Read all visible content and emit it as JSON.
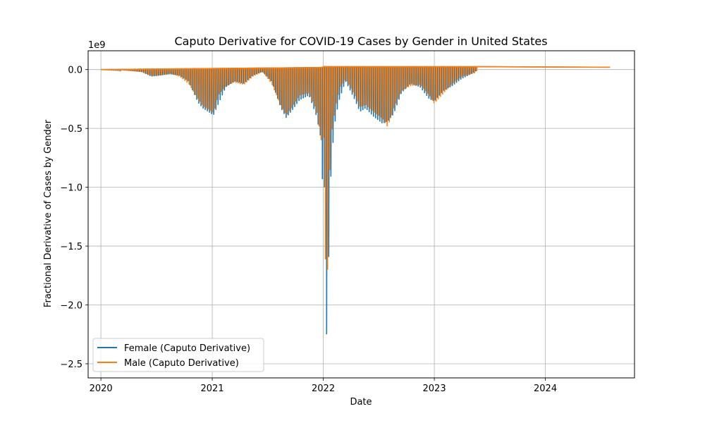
{
  "chart_data": {
    "type": "line",
    "title": "Caputo Derivative for COVID-19 Cases by Gender in United States",
    "xlabel": "Date",
    "ylabel": "Fractional Derivative of Cases by Gender",
    "y_offset_text": "1e9",
    "y_scale": 1000000000,
    "xlim": [
      "2019-11-20",
      "2024-10-20"
    ],
    "ylim": [
      -2.62,
      0.16
    ],
    "x_ticks": [
      "2020",
      "2021",
      "2022",
      "2023",
      "2024"
    ],
    "x_tick_dates": [
      "2020-01-01",
      "2021-01-01",
      "2022-01-01",
      "2023-01-01",
      "2024-01-01"
    ],
    "y_ticks": [
      0.0,
      -0.5,
      -1.0,
      -1.5,
      -2.0,
      -2.5
    ],
    "y_tick_labels": [
      "0.0",
      "−0.5",
      "−1.0",
      "−1.5",
      "−2.0",
      "−2.5"
    ],
    "grid": true,
    "legend_position": "lower-left",
    "series": [
      {
        "name": "Female (Caputo Derivative)",
        "color": "#1f77b4",
        "points": [
          [
            "2020-01-01",
            0.0
          ],
          [
            "2020-03-01",
            -0.003
          ],
          [
            "2020-04-15",
            -0.012
          ],
          [
            "2020-05-15",
            -0.022
          ],
          [
            "2020-06-15",
            -0.06
          ],
          [
            "2020-07-15",
            -0.05
          ],
          [
            "2020-08-15",
            -0.04
          ],
          [
            "2020-09-15",
            -0.05
          ],
          [
            "2020-10-15",
            -0.1
          ],
          [
            "2020-11-15",
            -0.28
          ],
          [
            "2020-12-01",
            -0.33
          ],
          [
            "2020-12-20",
            -0.36
          ],
          [
            "2021-01-05",
            -0.39
          ],
          [
            "2021-01-20",
            -0.3
          ],
          [
            "2021-02-15",
            -0.15
          ],
          [
            "2021-03-15",
            -0.1
          ],
          [
            "2021-04-15",
            -0.12
          ],
          [
            "2021-05-15",
            -0.05
          ],
          [
            "2021-06-15",
            -0.02
          ],
          [
            "2021-07-15",
            -0.1
          ],
          [
            "2021-08-15",
            -0.33
          ],
          [
            "2021-09-01",
            -0.41
          ],
          [
            "2021-09-20",
            -0.35
          ],
          [
            "2021-10-15",
            -0.26
          ],
          [
            "2021-11-15",
            -0.22
          ],
          [
            "2021-12-10",
            -0.4
          ],
          [
            "2021-12-25",
            -0.6
          ],
          [
            "2022-01-01",
            -1.18
          ],
          [
            "2022-01-05",
            -1.0
          ],
          [
            "2022-01-08",
            -2.51
          ],
          [
            "2022-01-12",
            -2.25
          ],
          [
            "2022-01-18",
            -1.7
          ],
          [
            "2022-01-25",
            -0.95
          ],
          [
            "2022-02-05",
            -0.5
          ],
          [
            "2022-02-20",
            -0.28
          ],
          [
            "2022-03-15",
            -0.1
          ],
          [
            "2022-04-15",
            -0.26
          ],
          [
            "2022-05-01",
            -0.36
          ],
          [
            "2022-05-20",
            -0.33
          ],
          [
            "2022-06-15",
            -0.4
          ],
          [
            "2022-07-15",
            -0.46
          ],
          [
            "2022-08-01",
            -0.44
          ],
          [
            "2022-08-20",
            -0.38
          ],
          [
            "2022-09-15",
            -0.2
          ],
          [
            "2022-10-15",
            -0.12
          ],
          [
            "2022-11-15",
            -0.15
          ],
          [
            "2022-12-15",
            -0.25
          ],
          [
            "2023-01-01",
            -0.27
          ],
          [
            "2023-02-01",
            -0.18
          ],
          [
            "2023-03-01",
            -0.14
          ],
          [
            "2023-04-01",
            -0.08
          ],
          [
            "2023-05-15",
            -0.02
          ],
          [
            "2023-06-01",
            0.025
          ],
          [
            "2024-08-01",
            0.02
          ]
        ]
      },
      {
        "name": "Male (Caputo Derivative)",
        "color": "#ff7f0e",
        "points": [
          [
            "2020-01-01",
            0.0
          ],
          [
            "2020-03-01",
            -0.003
          ],
          [
            "2020-04-15",
            -0.015
          ],
          [
            "2020-05-15",
            -0.02
          ],
          [
            "2020-06-15",
            -0.055
          ],
          [
            "2020-07-15",
            -0.05
          ],
          [
            "2020-08-15",
            -0.035
          ],
          [
            "2020-09-15",
            -0.06
          ],
          [
            "2020-10-15",
            -0.12
          ],
          [
            "2020-11-15",
            -0.25
          ],
          [
            "2020-12-01",
            -0.31
          ],
          [
            "2020-12-20",
            -0.34
          ],
          [
            "2021-01-05",
            -0.37
          ],
          [
            "2021-01-20",
            -0.22
          ],
          [
            "2021-02-15",
            -0.14
          ],
          [
            "2021-03-15",
            -0.11
          ],
          [
            "2021-04-15",
            -0.13
          ],
          [
            "2021-05-15",
            -0.06
          ],
          [
            "2021-06-15",
            -0.02
          ],
          [
            "2021-07-15",
            -0.12
          ],
          [
            "2021-08-15",
            -0.31
          ],
          [
            "2021-09-01",
            -0.39
          ],
          [
            "2021-09-20",
            -0.32
          ],
          [
            "2021-10-15",
            -0.22
          ],
          [
            "2021-11-15",
            -0.2
          ],
          [
            "2021-12-10",
            -0.35
          ],
          [
            "2021-12-25",
            -0.6
          ],
          [
            "2022-01-01",
            -0.58
          ],
          [
            "2022-01-04",
            -2.06
          ],
          [
            "2022-01-09",
            -1.5
          ],
          [
            "2022-01-15",
            -1.7
          ],
          [
            "2022-01-20",
            -0.98
          ],
          [
            "2022-01-27",
            -0.54
          ],
          [
            "2022-02-10",
            -0.31
          ],
          [
            "2022-02-25",
            -0.15
          ],
          [
            "2022-03-15",
            -0.08
          ],
          [
            "2022-04-15",
            -0.22
          ],
          [
            "2022-05-01",
            -0.32
          ],
          [
            "2022-05-20",
            -0.3
          ],
          [
            "2022-06-15",
            -0.36
          ],
          [
            "2022-07-15",
            -0.42
          ],
          [
            "2022-08-01",
            -0.49
          ],
          [
            "2022-08-20",
            -0.33
          ],
          [
            "2022-09-15",
            -0.18
          ],
          [
            "2022-10-15",
            -0.14
          ],
          [
            "2022-11-15",
            -0.13
          ],
          [
            "2022-12-15",
            -0.22
          ],
          [
            "2023-01-01",
            -0.29
          ],
          [
            "2023-02-01",
            -0.2
          ],
          [
            "2023-03-01",
            -0.12
          ],
          [
            "2023-04-01",
            -0.06
          ],
          [
            "2023-05-15",
            -0.03
          ],
          [
            "2023-06-01",
            0.025
          ],
          [
            "2024-08-01",
            0.02
          ]
        ]
      }
    ]
  }
}
